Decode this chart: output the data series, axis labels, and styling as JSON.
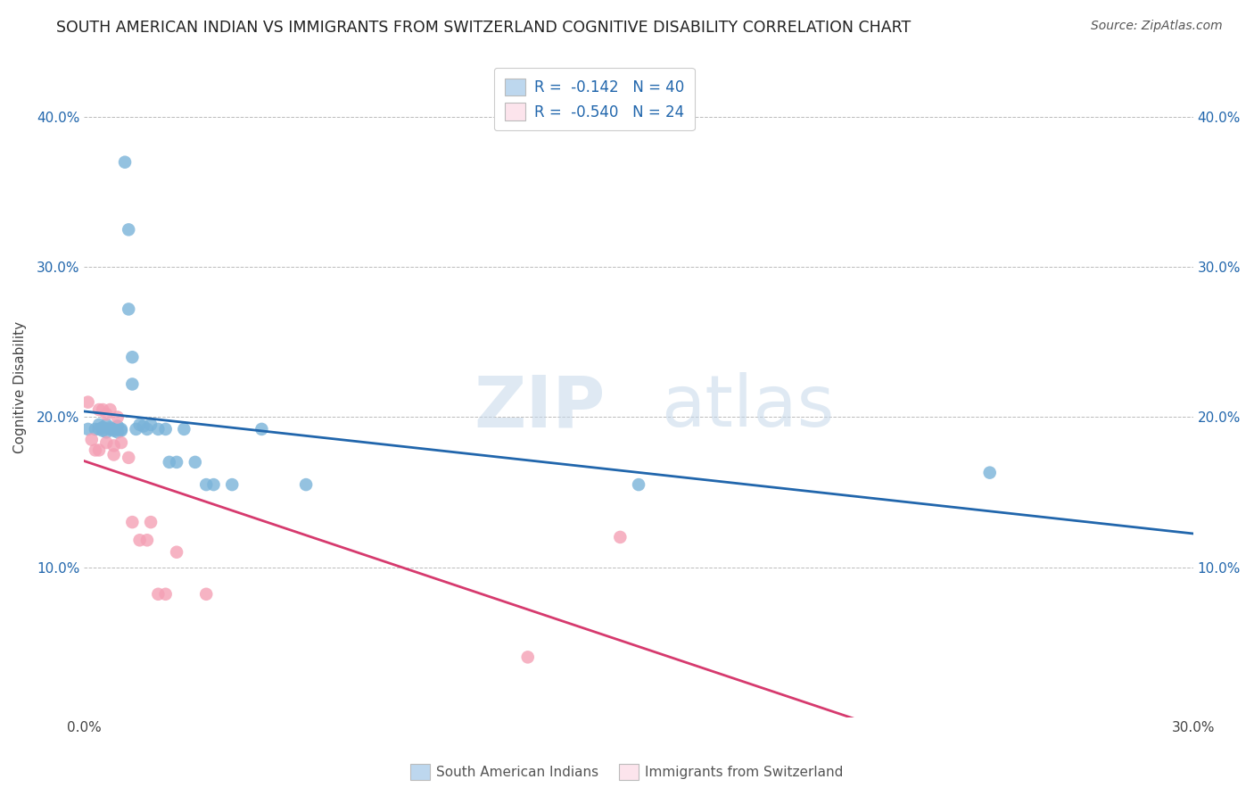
{
  "title": "SOUTH AMERICAN INDIAN VS IMMIGRANTS FROM SWITZERLAND COGNITIVE DISABILITY CORRELATION CHART",
  "source": "Source: ZipAtlas.com",
  "ylabel": "Cognitive Disability",
  "watermark_zip": "ZIP",
  "watermark_atlas": "atlas",
  "legend_r1": "R =  -0.142   N = 40",
  "legend_r2": "R =  -0.540   N = 24",
  "blue_color": "#7ab3d9",
  "blue_fill": "#bdd7ee",
  "pink_color": "#f4a0b5",
  "pink_fill": "#fce4ec",
  "trendline_blue": "#2166ac",
  "trendline_pink": "#d63a6e",
  "grid_color": "#bbbbbb",
  "background": "#ffffff",
  "blue_scatter_x": [
    0.001,
    0.003,
    0.004,
    0.004,
    0.005,
    0.005,
    0.005,
    0.006,
    0.006,
    0.007,
    0.007,
    0.008,
    0.008,
    0.009,
    0.009,
    0.01,
    0.01,
    0.011,
    0.012,
    0.012,
    0.013,
    0.013,
    0.014,
    0.015,
    0.016,
    0.017,
    0.018,
    0.02,
    0.022,
    0.023,
    0.025,
    0.027,
    0.03,
    0.033,
    0.035,
    0.04,
    0.048,
    0.06,
    0.15,
    0.245
  ],
  "blue_scatter_y": [
    0.192,
    0.192,
    0.192,
    0.195,
    0.193,
    0.193,
    0.191,
    0.195,
    0.19,
    0.193,
    0.192,
    0.192,
    0.191,
    0.19,
    0.194,
    0.192,
    0.191,
    0.37,
    0.325,
    0.272,
    0.24,
    0.222,
    0.192,
    0.195,
    0.194,
    0.192,
    0.195,
    0.192,
    0.192,
    0.17,
    0.17,
    0.192,
    0.17,
    0.155,
    0.155,
    0.155,
    0.192,
    0.155,
    0.155,
    0.163
  ],
  "pink_scatter_x": [
    0.001,
    0.002,
    0.003,
    0.004,
    0.004,
    0.005,
    0.006,
    0.006,
    0.007,
    0.008,
    0.008,
    0.009,
    0.01,
    0.012,
    0.013,
    0.015,
    0.017,
    0.018,
    0.02,
    0.022,
    0.025,
    0.033,
    0.12,
    0.145
  ],
  "pink_scatter_y": [
    0.21,
    0.185,
    0.178,
    0.205,
    0.178,
    0.205,
    0.202,
    0.183,
    0.205,
    0.181,
    0.175,
    0.2,
    0.183,
    0.173,
    0.13,
    0.118,
    0.118,
    0.13,
    0.082,
    0.082,
    0.11,
    0.082,
    0.04,
    0.12
  ],
  "xlim": [
    0.0,
    0.3
  ],
  "ylim": [
    0.0,
    0.44
  ],
  "yticks": [
    0.0,
    0.1,
    0.2,
    0.3,
    0.4
  ],
  "ytick_labels_left": [
    "",
    "10.0%",
    "20.0%",
    "30.0%",
    "40.0%"
  ],
  "ytick_labels_right": [
    "",
    "10.0%",
    "20.0%",
    "30.0%",
    "40.0%"
  ],
  "xticks": [
    0.0,
    0.05,
    0.1,
    0.15,
    0.2,
    0.25,
    0.3
  ],
  "xtick_labels": [
    "0.0%",
    "",
    "",
    "",
    "",
    "",
    "30.0%"
  ]
}
